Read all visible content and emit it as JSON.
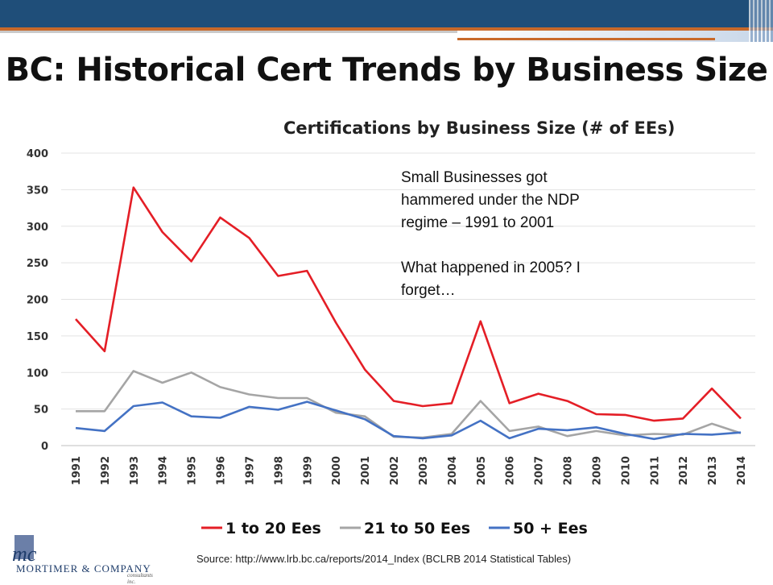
{
  "slide": {
    "title": "BC: Historical Cert Trends by Business Size",
    "source": "Source: http://www.lrb.bc.ca/reports/2014_Index (BCLRB 2014 Statistical Tables)",
    "logo": {
      "name": "MORTIMER & COMPANY",
      "sub": "consultants inc."
    },
    "annotation": {
      "line1": "Small Businesses got",
      "line2": "hammered under the NDP",
      "line3": "regime – 1991 to 2001",
      "line4": "What happened in 2005?  I",
      "line5": "forget…"
    }
  },
  "chart_data": {
    "type": "line",
    "title": "Certifications by Business Size (# of EEs)",
    "xlabel": "",
    "ylabel": "",
    "ylim": [
      0,
      400
    ],
    "yticks": [
      0,
      50,
      100,
      150,
      200,
      250,
      300,
      350,
      400
    ],
    "grid": true,
    "legend": "bottom",
    "x": [
      "1991",
      "1992",
      "1993",
      "1994",
      "1995",
      "1996",
      "1997",
      "1998",
      "1999",
      "2000",
      "2001",
      "2002",
      "2003",
      "2004",
      "2005",
      "2006",
      "2007",
      "2008",
      "2009",
      "2010",
      "2011",
      "2012",
      "2013",
      "2014"
    ],
    "series": [
      {
        "name": "1 to 20 Ees",
        "color": "#e41e26",
        "values": [
          173,
          129,
          353,
          292,
          252,
          312,
          284,
          232,
          239,
          168,
          104,
          61,
          54,
          58,
          170,
          58,
          71,
          61,
          43,
          42,
          34,
          37,
          78,
          37
        ]
      },
      {
        "name": "21 to 50 Ees",
        "color": "#a5a5a5",
        "values": [
          47,
          47,
          102,
          86,
          100,
          80,
          70,
          65,
          65,
          45,
          40,
          12,
          11,
          16,
          61,
          20,
          26,
          13,
          20,
          14,
          16,
          15,
          30,
          17
        ]
      },
      {
        "name": "50 + Ees",
        "color": "#4472c4",
        "values": [
          24,
          20,
          54,
          59,
          40,
          38,
          53,
          49,
          60,
          48,
          36,
          13,
          10,
          14,
          34,
          10,
          23,
          21,
          25,
          16,
          9,
          16,
          15,
          18
        ]
      }
    ]
  }
}
